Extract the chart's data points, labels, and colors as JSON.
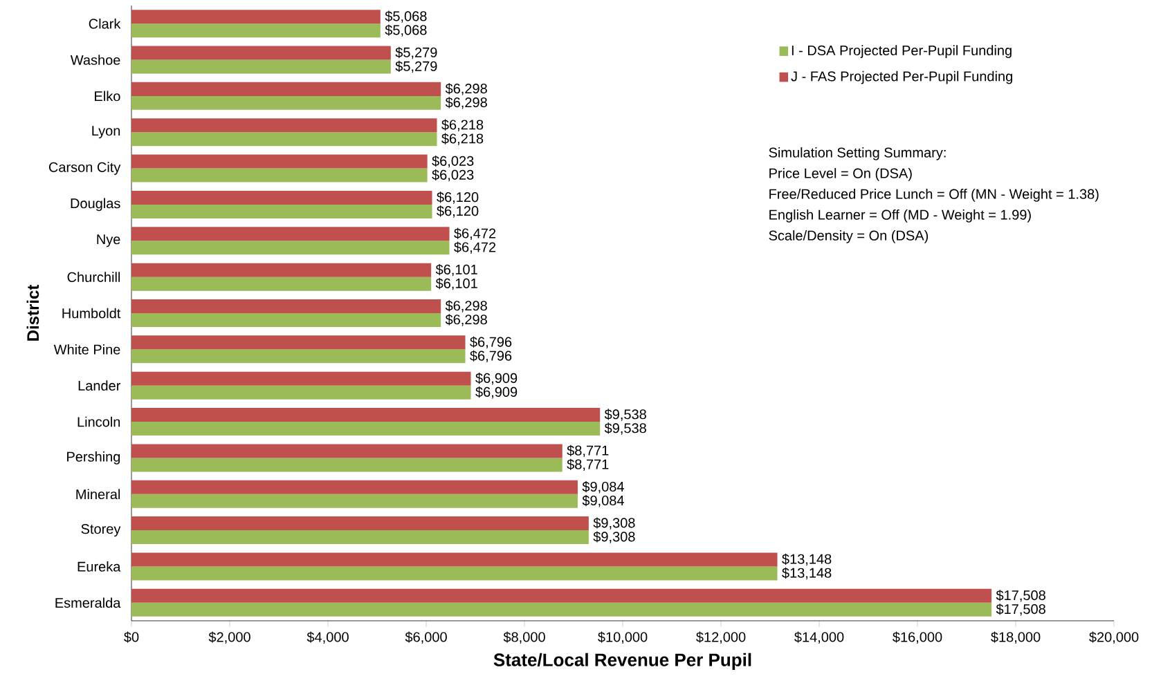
{
  "chart_data": {
    "type": "bar",
    "orientation": "horizontal",
    "xlabel": "State/Local Revenue Per Pupil",
    "ylabel": "District",
    "categories": [
      "Clark",
      "Washoe",
      "Elko",
      "Lyon",
      "Carson City",
      "Douglas",
      "Nye",
      "Churchill",
      "Humboldt",
      "White Pine",
      "Lander",
      "Lincoln",
      "Pershing",
      "Mineral",
      "Storey",
      "Eureka",
      "Esmeralda"
    ],
    "series": [
      {
        "name": "I - DSA Projected Per-Pupil Funding",
        "color": "#9bbb59",
        "values": [
          5068,
          5279,
          6298,
          6218,
          6023,
          6120,
          6472,
          6101,
          6298,
          6796,
          6909,
          9538,
          8771,
          9084,
          9308,
          13148,
          17508
        ],
        "value_labels": [
          "$5,068",
          "$5,279",
          "$6,298",
          "$6,218",
          "$6,023",
          "$6,120",
          "$6,472",
          "$6,101",
          "$6,298",
          "$6,796",
          "$6,909",
          "$9,538",
          "$8,771",
          "$9,084",
          "$9,308",
          "$13,148",
          "$17,508"
        ]
      },
      {
        "name": "J - FAS Projected Per-Pupil Funding",
        "color": "#c0504d",
        "values": [
          5068,
          5279,
          6298,
          6218,
          6023,
          6120,
          6472,
          6101,
          6298,
          6796,
          6909,
          9538,
          8771,
          9084,
          9308,
          13148,
          17508
        ],
        "value_labels": [
          "$5,068",
          "$5,279",
          "$6,298",
          "$6,218",
          "$6,023",
          "$6,120",
          "$6,472",
          "$6,101",
          "$6,298",
          "$6,796",
          "$6,909",
          "$9,538",
          "$8,771",
          "$9,084",
          "$9,308",
          "$13,148",
          "$17,508"
        ]
      }
    ],
    "xlim": [
      0,
      20000
    ],
    "xticks": [
      {
        "value": 0,
        "label": "$0"
      },
      {
        "value": 2000,
        "label": "$2,000"
      },
      {
        "value": 4000,
        "label": "$4,000"
      },
      {
        "value": 6000,
        "label": "$6,000"
      },
      {
        "value": 8000,
        "label": "$8,000"
      },
      {
        "value": 10000,
        "label": "$10,000"
      },
      {
        "value": 12000,
        "label": "$12,000"
      },
      {
        "value": 14000,
        "label": "$14,000"
      },
      {
        "value": 16000,
        "label": "$16,000"
      },
      {
        "value": 18000,
        "label": "$18,000"
      },
      {
        "value": 20000,
        "label": "$20,000"
      }
    ],
    "legend": "top right",
    "annotations": [
      "Simulation Setting Summary:",
      "Price Level = On (DSA)",
      "Free/Reduced Price Lunch = Off (MN - Weight = 1.38)",
      "English Learner = Off (MD - Weight = 1.99)",
      "Scale/Density = On (DSA)"
    ]
  }
}
